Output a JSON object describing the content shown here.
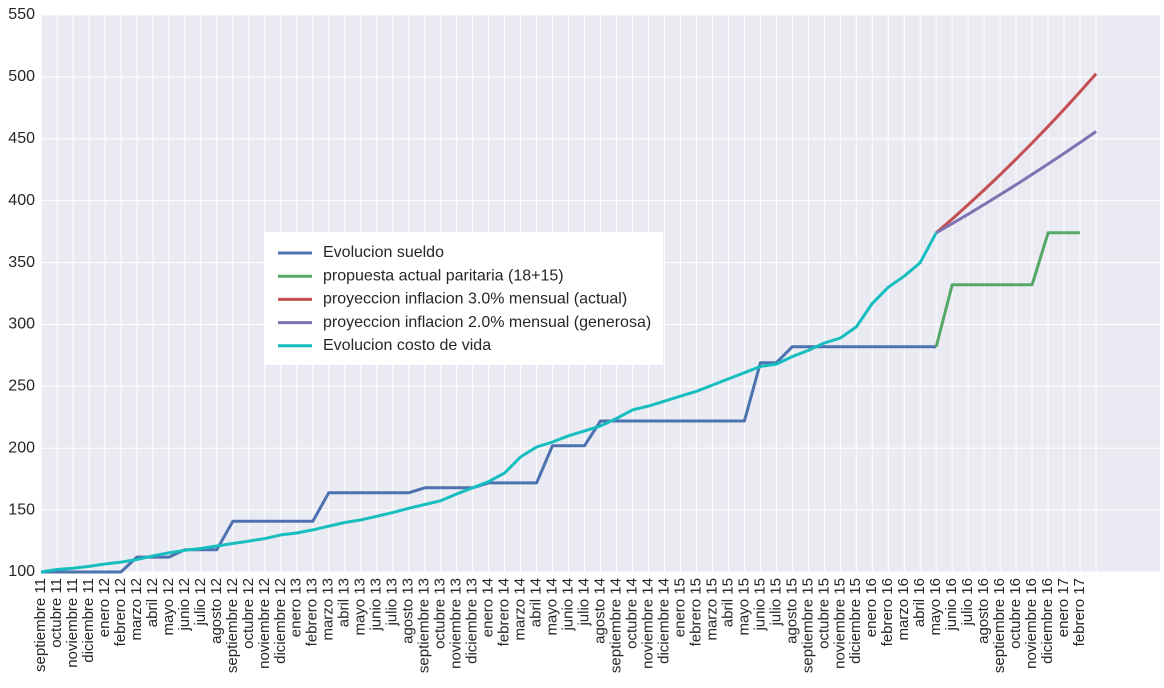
{
  "chart_data": {
    "type": "line",
    "categories": [
      "septiembre 11",
      "octubre 11",
      "noviembre 11",
      "diciembre 11",
      "enero 12",
      "febrero 12",
      "marzo 12",
      "abril 12",
      "mayo 12",
      "junio 12",
      "julio 12",
      "agosto 12",
      "septiembre 12",
      "octubre 12",
      "noviembre 12",
      "diciembre 12",
      "enero 13",
      "febrero 13",
      "marzo 13",
      "abril 13",
      "mayo 13",
      "junio 13",
      "julio 13",
      "agosto 13",
      "septiembre 13",
      "octubre 13",
      "noviembre 13",
      "diciembre 13",
      "enero 14",
      "febrero 14",
      "marzo 14",
      "abril 14",
      "mayo 14",
      "junio 14",
      "julio 14",
      "agosto 14",
      "septiembre 14",
      "octubre 14",
      "noviembre 14",
      "diciembre 14",
      "enero 15",
      "febrero 15",
      "marzo 15",
      "abril 15",
      "mayo 15",
      "junio 15",
      "julio 15",
      "agosto 15",
      "septiembre 15",
      "octubre 15",
      "noviembre 15",
      "diciembre 15",
      "enero 16",
      "febrero 16",
      "marzo 16",
      "abril 16",
      "mayo 16",
      "junio 16",
      "julio 16",
      "agosto 16",
      "septiembre 16",
      "octubre 16",
      "noviembre 16",
      "diciembre 16",
      "enero 17",
      "febrero 17",
      null
    ],
    "xlim": [
      0,
      70
    ],
    "ylim": [
      100,
      550
    ],
    "yticks": [
      100,
      150,
      200,
      250,
      300,
      350,
      400,
      450,
      500,
      550
    ],
    "grid": true,
    "legend": "center left",
    "series": [
      {
        "name": "Evolucion sueldo",
        "color": "#4c72b0",
        "values": [
          100,
          100,
          100,
          100,
          100,
          100,
          112,
          112,
          112,
          118,
          118,
          118,
          141,
          141,
          141,
          141,
          141,
          141,
          164,
          164,
          164,
          164,
          164,
          164,
          168,
          168,
          168,
          168,
          172,
          172,
          172,
          172,
          202,
          202,
          202,
          222,
          222,
          222,
          222,
          222,
          222,
          222,
          222,
          222,
          222,
          269,
          269,
          282,
          282,
          282,
          282,
          282,
          282,
          282,
          282,
          282,
          282,
          null,
          null,
          null,
          null,
          null,
          null,
          null,
          null,
          null,
          null
        ]
      },
      {
        "name": "propuesta actual paritaria (18+15)",
        "color": "#55a868",
        "values": [
          null,
          null,
          null,
          null,
          null,
          null,
          null,
          null,
          null,
          null,
          null,
          null,
          null,
          null,
          null,
          null,
          null,
          null,
          null,
          null,
          null,
          null,
          null,
          null,
          null,
          null,
          null,
          null,
          null,
          null,
          null,
          null,
          null,
          null,
          null,
          null,
          null,
          null,
          null,
          null,
          null,
          null,
          null,
          null,
          null,
          null,
          null,
          null,
          null,
          null,
          null,
          null,
          null,
          null,
          null,
          null,
          282,
          332,
          332,
          332,
          332,
          332,
          332,
          374,
          374,
          374,
          null
        ]
      },
      {
        "name": "proyeccion inflacion 3.0% mensual (actual)",
        "color": "#c44e52",
        "values": [
          null,
          null,
          null,
          null,
          null,
          null,
          null,
          null,
          null,
          null,
          null,
          null,
          null,
          null,
          null,
          null,
          null,
          null,
          null,
          null,
          null,
          null,
          null,
          null,
          null,
          null,
          null,
          null,
          null,
          null,
          null,
          null,
          null,
          null,
          null,
          null,
          null,
          null,
          null,
          null,
          null,
          null,
          null,
          null,
          null,
          null,
          null,
          null,
          null,
          null,
          null,
          null,
          null,
          null,
          null,
          null,
          374,
          385.2,
          396.8,
          408.7,
          420.9,
          433.6,
          446.6,
          460.0,
          473.8,
          488.0,
          502.6
        ]
      },
      {
        "name": "proyeccion inflacion 2.0% mensual (generosa)",
        "color": "#8172b2",
        "values": [
          null,
          null,
          null,
          null,
          null,
          null,
          null,
          null,
          null,
          null,
          null,
          null,
          null,
          null,
          null,
          null,
          null,
          null,
          null,
          null,
          null,
          null,
          null,
          null,
          null,
          null,
          null,
          null,
          null,
          null,
          null,
          null,
          null,
          null,
          null,
          null,
          null,
          null,
          null,
          null,
          null,
          null,
          null,
          null,
          null,
          null,
          null,
          null,
          null,
          null,
          null,
          null,
          null,
          null,
          null,
          null,
          374,
          381.5,
          389.1,
          396.9,
          404.8,
          412.9,
          421.2,
          429.6,
          438.2,
          447.0,
          455.9
        ]
      },
      {
        "name": "Evolucion costo de vida",
        "color": "#17bebf",
        "values": [
          100,
          102,
          103,
          104.5,
          106.5,
          108,
          110,
          113,
          115.5,
          117.5,
          119,
          121,
          123,
          125,
          127,
          130,
          131.5,
          134,
          137,
          140,
          142,
          145,
          148,
          151.5,
          154.5,
          157.5,
          163,
          168,
          173,
          180,
          193,
          201,
          205,
          210,
          214,
          218,
          224,
          231,
          234,
          238,
          242,
          246,
          251,
          256,
          261,
          266,
          268,
          274,
          279,
          285,
          289,
          298,
          317,
          330,
          339,
          350,
          374,
          null,
          null,
          null,
          null,
          null,
          null,
          null,
          null,
          null,
          null
        ]
      }
    ]
  }
}
